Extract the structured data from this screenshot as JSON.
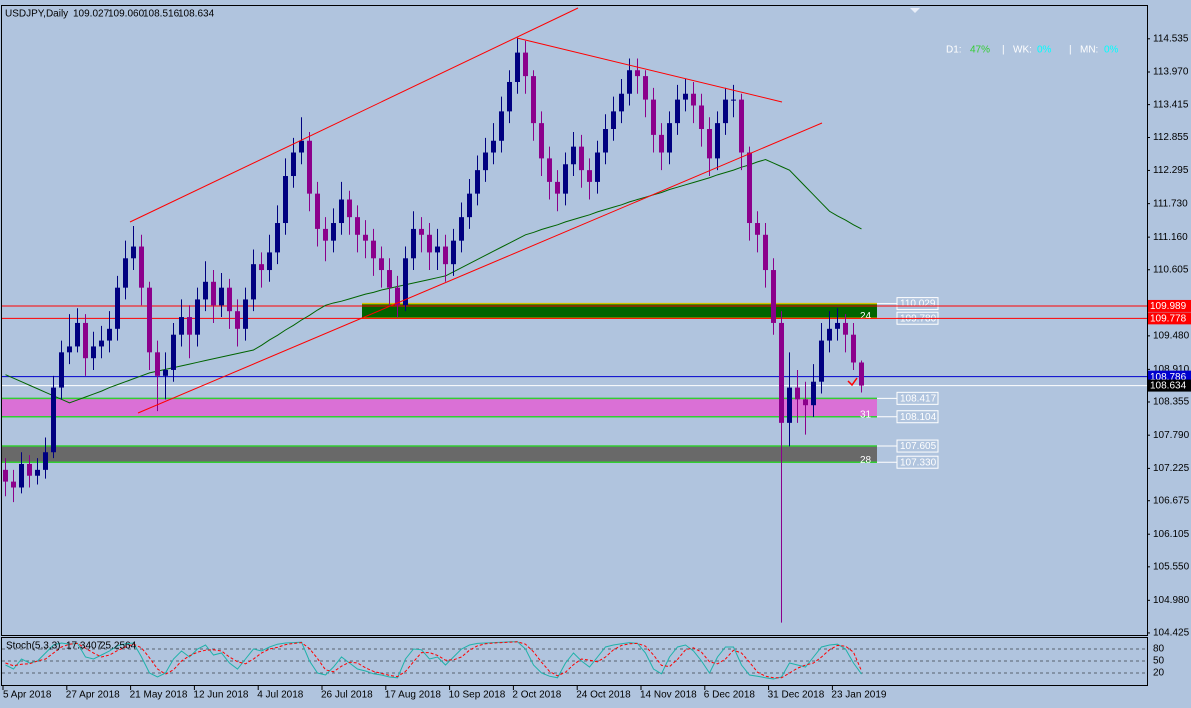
{
  "chart_data": {
    "type": "candlestick",
    "symbol": "USDJPY,Daily",
    "last_bar_labels": [
      "109.027",
      "109.060",
      "108.516",
      "108.634"
    ],
    "bull_color": "#000080",
    "bear_color": "#8b008b",
    "ylim": [
      104.39,
      115.11
    ],
    "yticks": [
      114.535,
      {
        "value": 113.97,
        "label": "113.970"
      },
      113.415,
      112.855,
      112.295,
      {
        "value": 111.73,
        "label": "111.730"
      },
      {
        "value": 111.16,
        "label": "111.160"
      },
      110.605,
      {
        "value": 109.48,
        "label": "109.480"
      },
      {
        "value": 108.91,
        "label": "108.910"
      },
      108.355,
      {
        "value": 107.79,
        "label": "107.790"
      },
      107.225,
      106.675,
      106.105,
      {
        "value": 105.55,
        "label": "105.550"
      },
      {
        "value": 104.98,
        "label": "104.980"
      },
      104.425
    ],
    "x_labels": [
      "5 Apr 2018",
      "27 Apr 2018",
      "21 May 2018",
      "12 Jun 2018",
      "4 Jul 2018",
      "26 Jul 2018",
      "17 Aug 2018",
      "10 Sep 2018",
      "2 Oct 2018",
      "24 Oct 2018",
      "14 Nov 2018",
      "6 Dec 2018",
      "31 Dec 2018",
      "23 Jan 2019"
    ],
    "ohlc": [
      [
        107.2,
        107.4,
        106.75,
        107.0
      ],
      [
        107.0,
        107.2,
        106.65,
        106.9
      ],
      [
        106.9,
        107.5,
        106.8,
        107.3
      ],
      [
        107.3,
        107.45,
        106.9,
        107.1
      ],
      [
        107.1,
        107.4,
        106.95,
        107.2
      ],
      [
        107.2,
        107.75,
        107.05,
        107.5
      ],
      [
        107.5,
        108.8,
        107.4,
        108.6
      ],
      [
        108.6,
        109.4,
        108.4,
        109.2
      ],
      [
        109.2,
        109.85,
        109.0,
        109.3
      ],
      [
        109.3,
        109.95,
        109.2,
        109.7
      ],
      [
        109.7,
        109.85,
        108.8,
        109.1
      ],
      [
        109.1,
        109.55,
        108.9,
        109.3
      ],
      [
        109.3,
        109.65,
        109.1,
        109.4
      ],
      [
        109.4,
        109.9,
        109.2,
        109.6
      ],
      [
        109.6,
        110.5,
        109.4,
        110.3
      ],
      [
        110.3,
        111.1,
        110.1,
        110.8
      ],
      [
        110.8,
        111.35,
        110.6,
        111.0
      ],
      [
        111.0,
        111.2,
        110.0,
        110.3
      ],
      [
        110.3,
        110.4,
        108.9,
        109.2
      ],
      [
        109.2,
        109.4,
        108.2,
        108.8
      ],
      [
        108.8,
        109.2,
        108.4,
        108.9
      ],
      [
        108.9,
        109.7,
        108.7,
        109.5
      ],
      [
        109.5,
        110.1,
        109.3,
        109.8
      ],
      [
        109.8,
        110.0,
        109.1,
        109.5
      ],
      [
        109.5,
        110.3,
        109.3,
        110.1
      ],
      [
        110.1,
        110.75,
        109.9,
        110.4
      ],
      [
        110.4,
        110.6,
        109.7,
        110.0
      ],
      [
        110.0,
        110.55,
        109.8,
        110.3
      ],
      [
        110.3,
        110.45,
        109.6,
        109.9
      ],
      [
        109.9,
        110.1,
        109.3,
        109.6
      ],
      [
        109.6,
        110.3,
        109.4,
        110.1
      ],
      [
        110.1,
        110.95,
        109.9,
        110.7
      ],
      [
        110.7,
        110.9,
        110.3,
        110.6
      ],
      [
        110.6,
        111.2,
        110.4,
        110.9
      ],
      [
        110.9,
        111.7,
        110.7,
        111.4
      ],
      [
        111.4,
        112.5,
        111.2,
        112.2
      ],
      [
        112.2,
        112.85,
        112.0,
        112.6
      ],
      [
        112.6,
        113.2,
        112.4,
        112.8
      ],
      [
        112.8,
        112.95,
        111.6,
        111.9
      ],
      [
        111.9,
        112.1,
        111.0,
        111.3
      ],
      [
        111.3,
        111.5,
        110.75,
        111.1
      ],
      [
        111.1,
        111.65,
        110.9,
        111.4
      ],
      [
        111.4,
        112.1,
        111.2,
        111.8
      ],
      [
        111.8,
        111.95,
        111.2,
        111.5
      ],
      [
        111.5,
        111.7,
        110.9,
        111.2
      ],
      [
        111.2,
        111.45,
        110.8,
        111.1
      ],
      [
        111.1,
        111.3,
        110.5,
        110.8
      ],
      [
        110.8,
        111.0,
        110.3,
        110.6
      ],
      [
        110.6,
        110.8,
        110.0,
        110.3
      ],
      [
        110.3,
        110.5,
        109.8,
        110.0
      ],
      [
        110.0,
        111.0,
        109.9,
        110.8
      ],
      [
        110.8,
        111.6,
        110.6,
        111.3
      ],
      [
        111.3,
        111.5,
        110.9,
        111.2
      ],
      [
        111.2,
        111.4,
        110.6,
        110.9
      ],
      [
        110.9,
        111.3,
        110.6,
        111.0
      ],
      [
        111.0,
        111.2,
        110.4,
        110.7
      ],
      [
        110.7,
        111.3,
        110.5,
        111.1
      ],
      [
        111.1,
        111.75,
        110.9,
        111.5
      ],
      [
        111.5,
        112.15,
        111.3,
        111.9
      ],
      [
        111.9,
        112.55,
        111.7,
        112.3
      ],
      [
        112.3,
        112.85,
        112.1,
        112.6
      ],
      [
        112.6,
        113.1,
        112.4,
        112.8
      ],
      [
        112.8,
        113.55,
        112.6,
        113.3
      ],
      [
        113.3,
        114.0,
        113.1,
        113.8
      ],
      [
        113.8,
        114.55,
        113.6,
        114.3
      ],
      [
        114.3,
        114.5,
        113.6,
        113.9
      ],
      [
        113.9,
        114.0,
        112.8,
        113.1
      ],
      [
        113.1,
        113.3,
        112.2,
        112.5
      ],
      [
        112.5,
        112.7,
        111.8,
        112.1
      ],
      [
        112.1,
        112.3,
        111.6,
        111.9
      ],
      [
        111.9,
        112.6,
        111.7,
        112.4
      ],
      [
        112.4,
        112.95,
        112.2,
        112.7
      ],
      [
        112.7,
        112.9,
        112.0,
        112.3
      ],
      [
        112.3,
        112.5,
        111.8,
        112.1
      ],
      [
        112.1,
        112.8,
        111.9,
        112.6
      ],
      [
        112.6,
        113.25,
        112.4,
        113.0
      ],
      [
        113.0,
        113.55,
        112.8,
        113.3
      ],
      [
        113.3,
        113.85,
        113.1,
        113.6
      ],
      [
        113.6,
        114.2,
        113.4,
        114.0
      ],
      [
        114.0,
        114.2,
        113.6,
        113.9
      ],
      [
        113.9,
        114.0,
        113.2,
        113.5
      ],
      [
        113.5,
        113.7,
        112.6,
        112.9
      ],
      [
        112.9,
        113.1,
        112.3,
        112.6
      ],
      [
        112.6,
        113.3,
        112.4,
        113.1
      ],
      [
        113.1,
        113.75,
        112.9,
        113.5
      ],
      [
        113.5,
        113.85,
        113.3,
        113.6
      ],
      [
        113.6,
        113.8,
        113.1,
        113.4
      ],
      [
        113.4,
        113.6,
        112.7,
        113.0
      ],
      [
        113.0,
        113.2,
        112.2,
        112.5
      ],
      [
        112.5,
        113.3,
        112.3,
        113.1
      ],
      [
        113.1,
        113.7,
        112.9,
        113.5
      ],
      [
        113.5,
        113.75,
        113.2,
        113.5
      ],
      [
        113.5,
        113.6,
        112.3,
        112.6
      ],
      [
        112.6,
        112.7,
        111.1,
        111.4
      ],
      [
        111.4,
        111.6,
        110.9,
        111.2
      ],
      [
        111.2,
        111.4,
        110.3,
        110.6
      ],
      [
        110.6,
        110.8,
        109.5,
        109.7
      ],
      [
        109.7,
        109.9,
        104.6,
        108.0
      ],
      [
        108.0,
        109.2,
        107.6,
        108.6
      ],
      [
        108.6,
        108.9,
        108.0,
        108.4
      ],
      [
        108.4,
        108.7,
        107.8,
        108.3
      ],
      [
        108.3,
        109.0,
        108.1,
        108.7
      ],
      [
        108.7,
        109.7,
        108.5,
        109.4
      ],
      [
        109.4,
        109.9,
        109.2,
        109.6
      ],
      [
        109.6,
        109.95,
        109.4,
        109.7
      ],
      [
        109.7,
        109.85,
        109.2,
        109.5
      ],
      [
        109.5,
        109.7,
        108.9,
        109.027
      ],
      [
        109.027,
        109.06,
        108.516,
        108.634
      ]
    ],
    "moving_average": {
      "color": "#006400",
      "values": [
        108.82,
        108.76,
        108.7,
        108.64,
        108.58,
        108.52,
        108.46,
        108.4,
        108.34,
        108.39,
        108.44,
        108.49,
        108.54,
        108.6,
        108.65,
        108.7,
        108.75,
        108.8,
        108.85,
        108.88,
        108.91,
        108.94,
        108.97,
        109.0,
        109.03,
        109.06,
        109.09,
        109.12,
        109.15,
        109.18,
        109.21,
        109.24,
        109.32,
        109.41,
        109.49,
        109.58,
        109.66,
        109.75,
        109.83,
        109.92,
        110.0,
        110.04,
        110.07,
        110.11,
        110.15,
        110.19,
        110.22,
        110.26,
        110.29,
        110.32,
        110.35,
        110.38,
        110.41,
        110.44,
        110.47,
        110.5,
        110.57,
        110.64,
        110.71,
        110.78,
        110.85,
        110.92,
        110.99,
        111.06,
        111.13,
        111.2,
        111.24,
        111.29,
        111.33,
        111.37,
        111.42,
        111.46,
        111.5,
        111.54,
        111.59,
        111.63,
        111.67,
        111.71,
        111.76,
        111.8,
        111.84,
        111.88,
        111.92,
        111.97,
        112.01,
        112.05,
        112.09,
        112.13,
        112.17,
        112.22,
        112.26,
        112.3,
        112.35,
        112.39,
        112.44,
        112.48,
        112.42,
        112.36,
        112.3,
        112.16,
        112.02,
        111.88,
        111.74,
        111.6,
        111.52,
        111.45,
        111.37,
        111.3
      ]
    },
    "trendline_color": "#ff0000",
    "price_lines": [
      {
        "value": 109.989,
        "color": "#ff0000"
      },
      {
        "value": 109.778,
        "color": "#ff0000"
      },
      {
        "value": 108.786,
        "color": "#0000cd"
      }
    ],
    "zones": [
      {
        "top": 110.029,
        "bottom": {
          "value": 109.78,
          "label": "109.780"
        },
        "color": "#006400",
        "border": "#d4c200",
        "count": "24"
      },
      {
        "top": 108.417,
        "bottom": 108.104,
        "color": "#da70d6",
        "border": "#32cd32",
        "count": "31"
      },
      {
        "top": 107.605,
        "bottom": {
          "value": 107.33,
          "label": "107.330"
        },
        "color": "#696969",
        "border": "#32cd32",
        "count": "28"
      }
    ]
  },
  "strength": {
    "separator": "|",
    "items": [
      {
        "label": "D1:",
        "value": "47%",
        "color": "#32cd32"
      },
      {
        "label": "WK:",
        "value": "0%",
        "color": "#00ffff"
      },
      {
        "label": "MN:",
        "value": "0%",
        "color": "#00ffff"
      }
    ]
  },
  "stochastic": {
    "name": "Stoch(5,3,3)",
    "ylim": [
      0,
      100
    ],
    "yticks": [
      80,
      50,
      20
    ],
    "main": {
      "color": "#20b2aa",
      "values": [
        40,
        30,
        55,
        45,
        50,
        70,
        90,
        95,
        92,
        94,
        60,
        55,
        65,
        75,
        88,
        93,
        95,
        60,
        20,
        10,
        20,
        55,
        75,
        60,
        80,
        90,
        65,
        70,
        45,
        30,
        55,
        80,
        75,
        85,
        92,
        95,
        96,
        97,
        50,
        20,
        15,
        35,
        60,
        45,
        30,
        25,
        18,
        15,
        10,
        8,
        55,
        80,
        78,
        55,
        60,
        40,
        60,
        80,
        90,
        94,
        95,
        96,
        97,
        98,
        98,
        80,
        40,
        20,
        12,
        8,
        45,
        70,
        50,
        35,
        60,
        85,
        90,
        93,
        96,
        94,
        70,
        30,
        18,
        60,
        85,
        90,
        75,
        50,
        20,
        60,
        85,
        85,
        40,
        15,
        12,
        8,
        5,
        10,
        45,
        40,
        35,
        60,
        85,
        90,
        92,
        80,
        45,
        17.3407
      ]
    },
    "signal": {
      "color": "#ff0000",
      "values": [
        45,
        38,
        42,
        43,
        50,
        55,
        70,
        85,
        92,
        94,
        82,
        70,
        60,
        65,
        76,
        85,
        92,
        83,
        58,
        30,
        17,
        28,
        50,
        63,
        72,
        77,
        78,
        75,
        60,
        48,
        43,
        55,
        70,
        80,
        84,
        91,
        94,
        96,
        81,
        56,
        28,
        23,
        37,
        47,
        45,
        33,
        24,
        19,
        14,
        11,
        24,
        48,
        71,
        71,
        64,
        52,
        53,
        60,
        77,
        88,
        93,
        95,
        96,
        97,
        98,
        92,
        73,
        47,
        24,
        13,
        22,
        41,
        55,
        52,
        48,
        60,
        78,
        89,
        93,
        94,
        87,
        65,
        39,
        36,
        54,
        78,
        83,
        72,
        48,
        43,
        55,
        77,
        70,
        47,
        22,
        12,
        8,
        8,
        20,
        32,
        40,
        45,
        60,
        78,
        89,
        87,
        72,
        25.2564
      ]
    }
  }
}
